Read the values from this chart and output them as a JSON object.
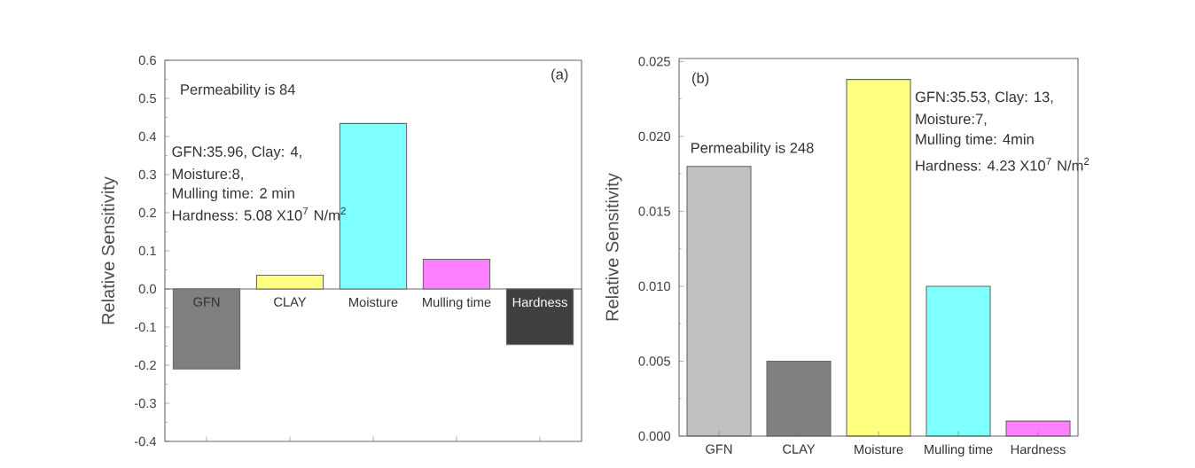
{
  "chart_data": [
    {
      "type": "bar",
      "ylabel": "Relative Sensitivity",
      "categories": [
        "GFN",
        "CLAY",
        "Moisture",
        "Mulling time",
        "Hardness"
      ],
      "values": [
        -0.21,
        0.036,
        0.434,
        0.078,
        -0.146
      ],
      "colors": [
        "#7f7f7f",
        "#ffff80",
        "#80ffff",
        "#ff80ff",
        "#404040"
      ],
      "ylim": [
        -0.4,
        0.6
      ],
      "yticks": [
        -0.4,
        -0.3,
        -0.2,
        -0.1,
        {
          "value": 0,
          "label": "0.0"
        },
        0.1,
        0.2,
        0.3,
        0.4,
        0.5,
        0.6
      ],
      "annotations": [
        "Permeability is 84",
        "(a)",
        "GFN:35.96, Clay: 4,",
        "Moisture:8,",
        "Mulling time: 2 min",
        "Hardness: 5.08 X10$^{7}$ N/m$^{2}$"
      ]
    },
    {
      "type": "bar",
      "ylabel": "Relative Sensitivity",
      "categories": [
        "GFN",
        "CLAY",
        "Moisture",
        "Mulling time",
        "Hardness"
      ],
      "values": [
        0.018,
        0.005,
        0.0238,
        0.01,
        0.001
      ],
      "colors": [
        "#c0c0c0",
        "#808080",
        "#ffff80",
        "#80ffff",
        "#ff80ff"
      ],
      "ylim": [
        0,
        0.0252
      ],
      "yticks": [
        {
          "value": 0,
          "label": "0.000"
        },
        0.005,
        {
          "value": 0.01,
          "label": "0.010"
        },
        0.015,
        {
          "value": 0.02,
          "label": "0.020"
        },
        0.025
      ],
      "annotations": [
        "(b)",
        "Permeability is 248",
        "GFN:35.53, Clay: 13,",
        "Moisture:7,",
        "Mulling time: 4min",
        "Hardness: 4.23 X10$^{7}$ N/m$^{2}$"
      ]
    }
  ]
}
